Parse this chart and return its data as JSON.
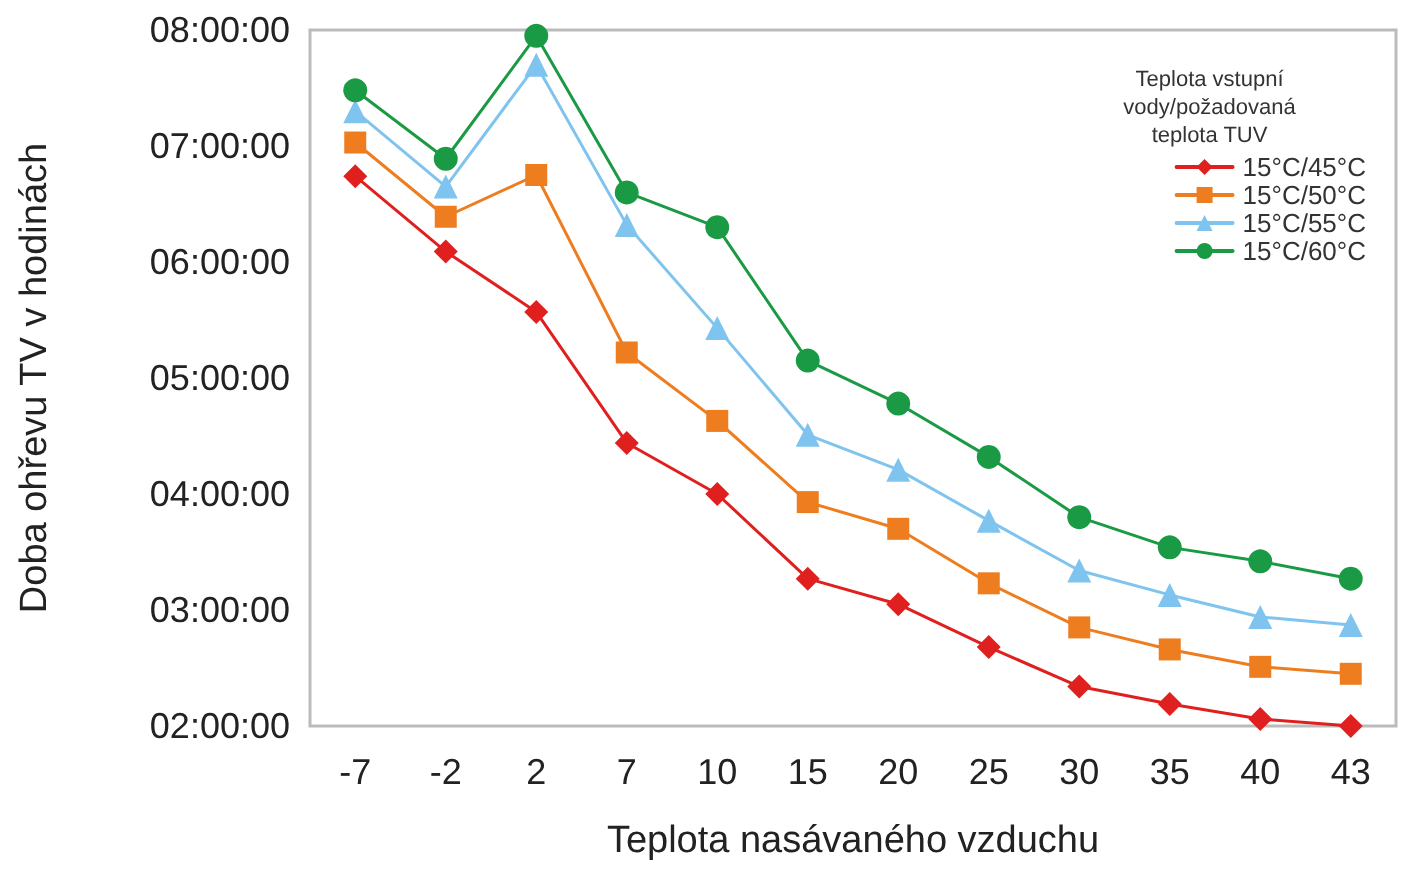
{
  "chart_data": {
    "type": "line",
    "xlabel": "Teplota nasávaného vzduchu",
    "ylabel": "Doba ohřevu TV v hodinách",
    "legend_title": "Teplota vstupní\nvody/požadovaná\nteplota TUV",
    "categories": [
      "-7",
      "-2",
      "2",
      "7",
      "10",
      "15",
      "20",
      "25",
      "30",
      "35",
      "40",
      "43"
    ],
    "ylim": [
      2,
      8
    ],
    "yticks": [
      {
        "value": 2,
        "label": "02:00:00"
      },
      {
        "value": 3,
        "label": "03:00:00"
      },
      {
        "value": 4,
        "label": "04:00:00"
      },
      {
        "value": 5,
        "label": "05:00:00"
      },
      {
        "value": 6,
        "label": "06:00:00"
      },
      {
        "value": 7,
        "label": "07:00:00"
      },
      {
        "value": 8,
        "label": "08:00:00"
      }
    ],
    "grid": false,
    "legend": "top right",
    "line_style": "solid",
    "series": [
      {
        "name": "15°C/45°C",
        "color": "#e0201f",
        "marker": "diamond",
        "values": [
          6.74,
          6.09,
          5.57,
          4.44,
          4.0,
          3.27,
          3.05,
          2.68,
          2.34,
          2.19,
          2.06,
          2.0
        ]
      },
      {
        "name": "15°C/50°C",
        "color": "#ee7d1f",
        "marker": "square",
        "values": [
          7.03,
          6.39,
          6.75,
          5.22,
          4.63,
          3.93,
          3.7,
          3.23,
          2.85,
          2.66,
          2.51,
          2.45
        ]
      },
      {
        "name": "15°C/55°C",
        "color": "#7fc4ee",
        "marker": "triangle",
        "values": [
          7.3,
          6.65,
          7.7,
          6.32,
          5.43,
          4.51,
          4.21,
          3.77,
          3.34,
          3.13,
          2.94,
          2.87
        ]
      },
      {
        "name": "15°C/60°C",
        "color": "#1a9a44",
        "marker": "circle",
        "values": [
          7.48,
          6.89,
          7.95,
          6.6,
          6.3,
          5.15,
          4.78,
          4.32,
          3.8,
          3.54,
          3.42,
          3.27
        ]
      }
    ]
  }
}
